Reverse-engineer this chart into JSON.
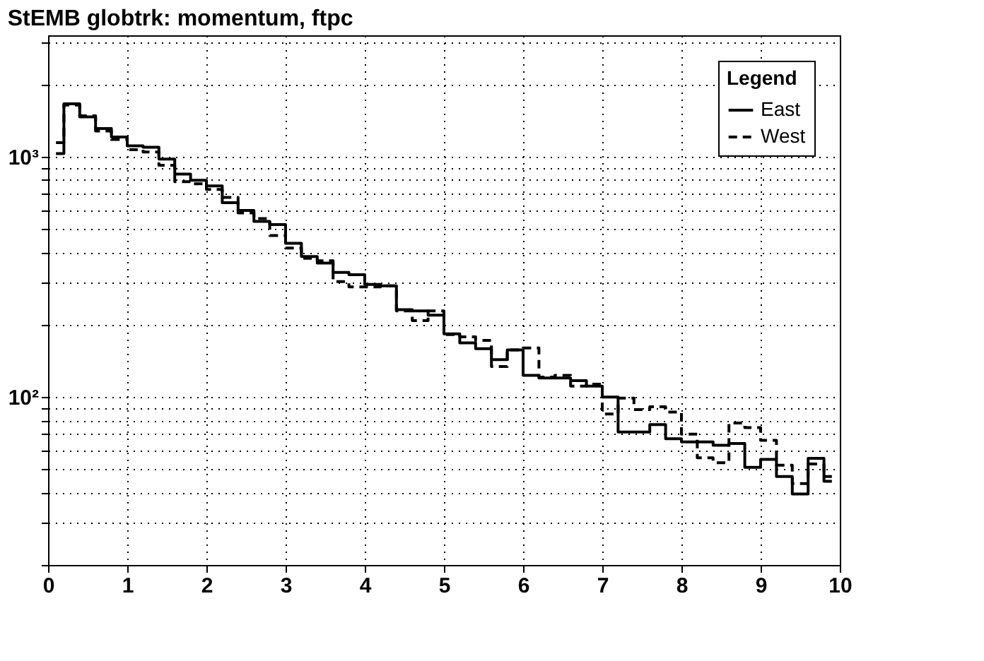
{
  "chart_data": {
    "type": "step",
    "title": "StEMB globtrk: momentum, ftpc",
    "legend_title": "Legend",
    "legend": "top right",
    "grid": true,
    "log": "y",
    "x": [
      0.1,
      0.3,
      0.5,
      0.7,
      0.9,
      1.1,
      1.3,
      1.5,
      1.7,
      1.9,
      2.1,
      2.3,
      2.5,
      2.7,
      2.9,
      3.1,
      3.3,
      3.5,
      3.7,
      3.9,
      4.1,
      4.3,
      4.5,
      4.7,
      4.9,
      5.1,
      5.3,
      5.5,
      5.7,
      5.9,
      6.1,
      6.3,
      6.5,
      6.7,
      6.9,
      7.1,
      7.3,
      7.5,
      7.7,
      7.9,
      8.1,
      8.3,
      8.5,
      8.7,
      8.9,
      9.1,
      9.3,
      9.5,
      9.7,
      9.9
    ],
    "xlim": [
      0,
      10
    ],
    "xticks": [
      0,
      1,
      2,
      3,
      4,
      5,
      6,
      7,
      8,
      9,
      10
    ],
    "ylim": [
      20,
      3200
    ],
    "yticks": [
      {
        "value": 20,
        "label": null
      },
      {
        "value": 30,
        "label": null
      },
      {
        "value": 40,
        "label": null
      },
      {
        "value": 50,
        "label": null
      },
      {
        "value": 60,
        "label": null
      },
      {
        "value": 70,
        "label": null
      },
      {
        "value": 80,
        "label": null
      },
      {
        "value": 90,
        "label": null
      },
      {
        "value": 100,
        "label": "10²"
      },
      {
        "value": 200,
        "label": null
      },
      {
        "value": 300,
        "label": null
      },
      {
        "value": 400,
        "label": null
      },
      {
        "value": 500,
        "label": null
      },
      {
        "value": 600,
        "label": null
      },
      {
        "value": 700,
        "label": null
      },
      {
        "value": 800,
        "label": null
      },
      {
        "value": 900,
        "label": null
      },
      {
        "value": 1000,
        "label": "10³"
      },
      {
        "value": 2000,
        "label": null
      },
      {
        "value": 3000,
        "label": null
      }
    ],
    "series": [
      {
        "name": "East",
        "color": "#000000",
        "line_style": "solid",
        "values": [
          1030,
          1660,
          1465,
          1310,
          1208,
          1110,
          1095,
          977,
          847,
          798,
          756,
          644,
          597,
          538,
          522,
          436,
          384,
          361,
          330,
          323,
          294,
          290,
          231,
          228,
          219,
          183,
          168,
          159,
          143,
          157,
          123,
          120,
          120,
          117,
          111,
          100,
          71.5,
          71.5,
          76.7,
          67,
          65,
          65,
          63,
          64,
          51,
          55,
          46.7,
          39.5,
          55.6,
          44.6
        ]
      },
      {
        "name": "West",
        "color": "#000000",
        "line_style": "dashed",
        "values": [
          1144,
          1640,
          1480,
          1280,
          1180,
          1070,
          1046,
          922,
          787,
          771,
          731,
          677,
          583,
          553,
          470,
          417,
          378,
          369,
          302,
          287,
          287,
          290,
          228,
          208,
          228,
          182,
          178,
          172,
          134,
          157,
          160,
          121,
          123,
          111,
          113,
          85,
          99,
          88.6,
          91,
          86.5,
          70,
          55.8,
          53.3,
          78,
          74.6,
          66,
          52,
          43.6,
          52.6,
          46.7
        ]
      }
    ]
  }
}
